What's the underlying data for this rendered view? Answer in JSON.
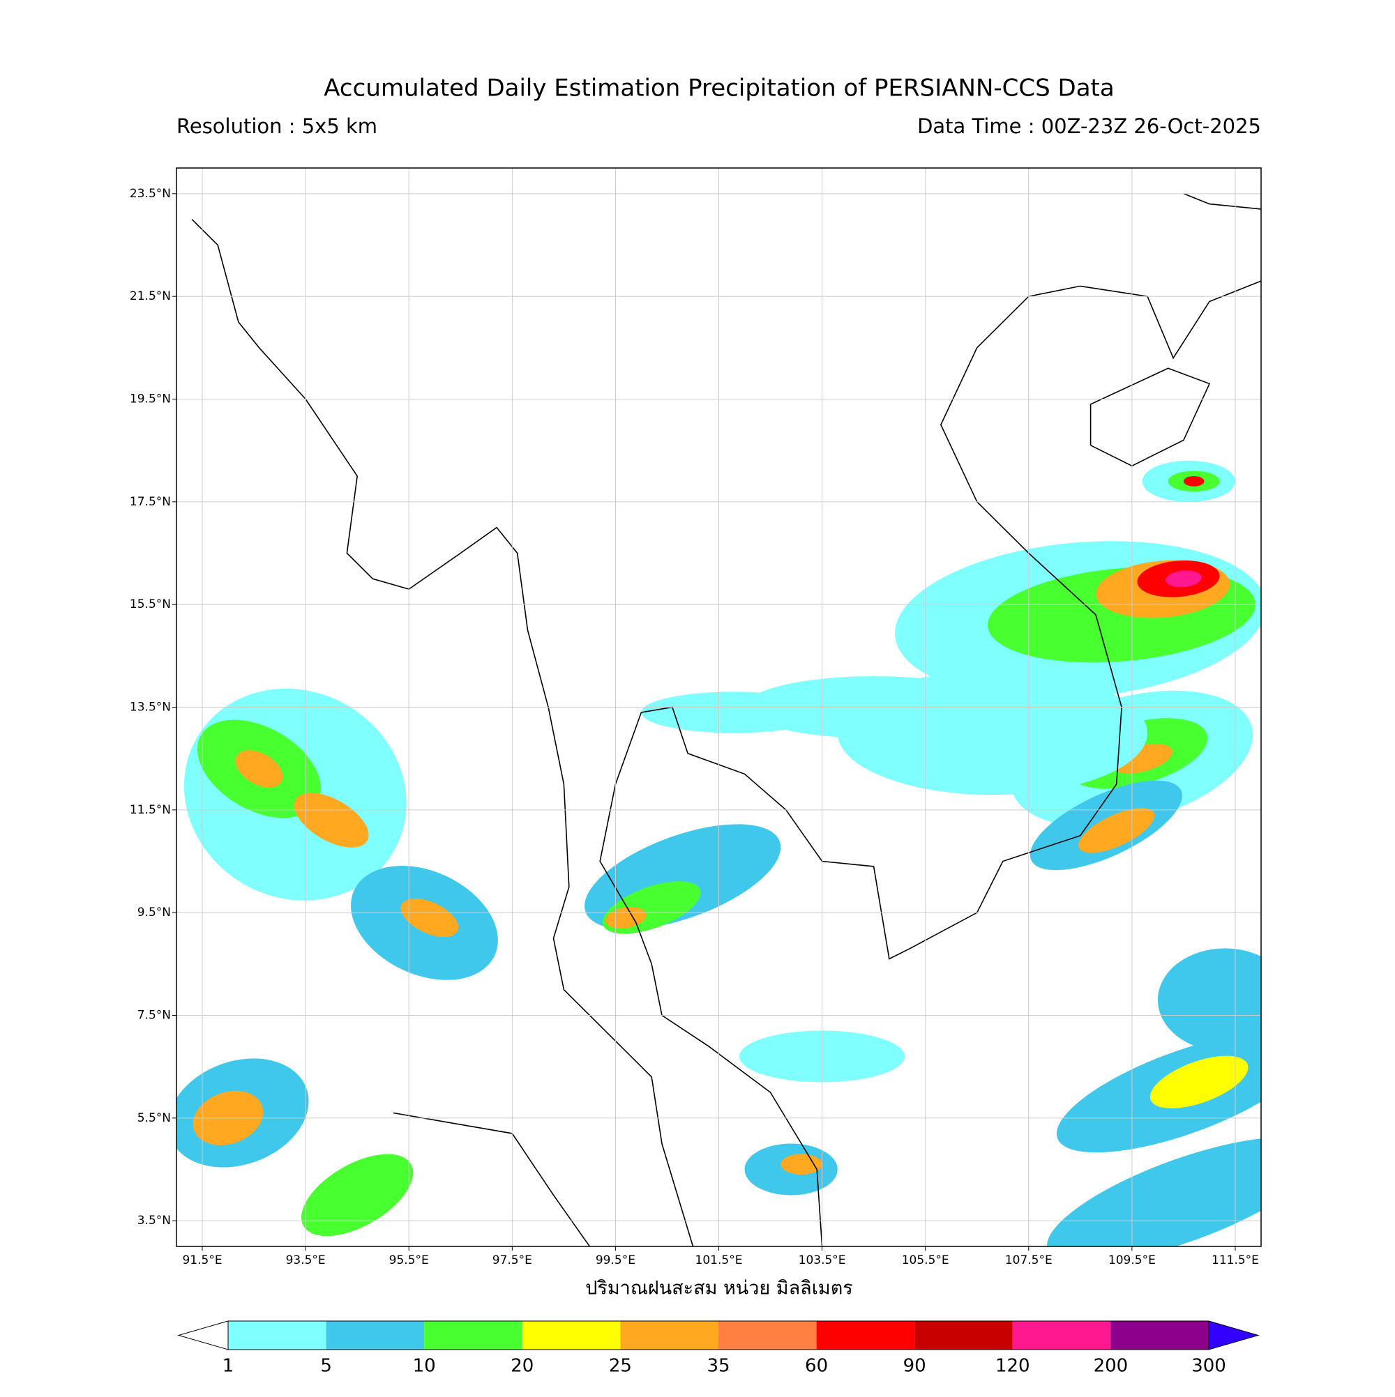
{
  "chart_data": {
    "type": "map",
    "title": "Accumulated Daily Estimation Precipitation of PERSIANN-CCS Data",
    "subtitle_left": "Resolution : 5x5 km",
    "subtitle_right": "Data Time : 00Z-23Z 26-Oct-2025",
    "x_label": "ปริมาณฝนสะสม หน่วย มิลลิเมตร",
    "xlim": [
      91,
      112
    ],
    "ylim": [
      3,
      24
    ],
    "grid": true,
    "xticks": [
      {
        "value": 91.5,
        "label": "91.5°E"
      },
      {
        "value": 93.5,
        "label": "93.5°E"
      },
      {
        "value": 95.5,
        "label": "95.5°E"
      },
      {
        "value": 97.5,
        "label": "97.5°E"
      },
      {
        "value": 99.5,
        "label": "99.5°E"
      },
      {
        "value": 101.5,
        "label": "101.5°E"
      },
      {
        "value": 103.5,
        "label": "103.5°E"
      },
      {
        "value": 105.5,
        "label": "105.5°E"
      },
      {
        "value": 107.5,
        "label": "107.5°E"
      },
      {
        "value": 109.5,
        "label": "109.5°E"
      },
      {
        "value": 111.5,
        "label": "111.5°E"
      }
    ],
    "yticks": [
      {
        "value": 3.5,
        "label": "3.5°N"
      },
      {
        "value": 5.5,
        "label": "5.5°N"
      },
      {
        "value": 7.5,
        "label": "7.5°N"
      },
      {
        "value": 9.5,
        "label": "9.5°N"
      },
      {
        "value": 11.5,
        "label": "11.5°N"
      },
      {
        "value": 13.5,
        "label": "13.5°N"
      },
      {
        "value": 15.5,
        "label": "15.5°N"
      },
      {
        "value": 17.5,
        "label": "17.5°N"
      },
      {
        "value": 19.5,
        "label": "19.5°N"
      },
      {
        "value": 21.5,
        "label": "21.5°N"
      },
      {
        "value": 23.5,
        "label": "23.5°N"
      }
    ],
    "colorbar": {
      "levels": [
        1,
        5,
        10,
        20,
        25,
        35,
        60,
        90,
        120,
        200,
        300
      ],
      "colors": [
        "#80ffff",
        "#40c8ec",
        "#48ff30",
        "#ffff00",
        "#ffa820",
        "#ff8040",
        "#ff0000",
        "#c80000",
        "#ff1890",
        "#8c008c"
      ],
      "under_color": "#ffffff",
      "over_color": "#3300ff"
    }
  }
}
